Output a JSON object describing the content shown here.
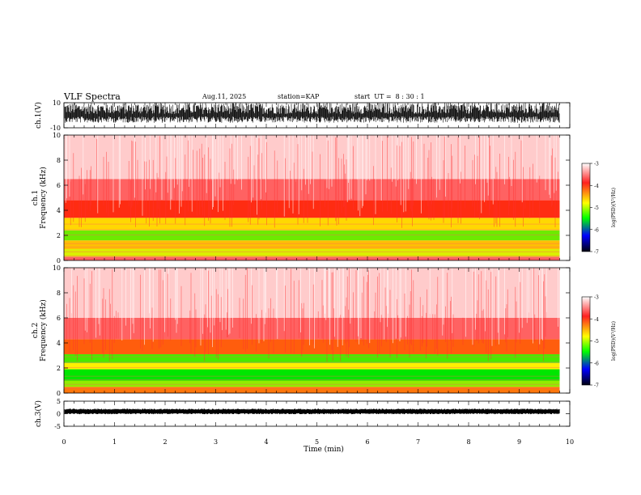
{
  "header": {
    "title": "VLF Spectra",
    "date": "Aug.11, 2025",
    "station": "station=KAP",
    "start": "start  UT =  8 : 30 : 1"
  },
  "chart_data": [
    {
      "type": "line",
      "panel": "ch1-waveform",
      "ylabel": "ch.1(V)",
      "ylim": [
        -10,
        10
      ],
      "yticks": [
        "10",
        "-10"
      ],
      "xlim": [
        0,
        10
      ],
      "color": "#000000",
      "note_values": "dense oscillating trace spanning roughly -5 to 10 V across 0 to 9.8 min"
    },
    {
      "type": "heatmap",
      "panel": "ch1-spectrogram",
      "ylabel": "ch.1\nFrequency (kHz)",
      "ylim": [
        0,
        10
      ],
      "yticks": [
        "0",
        "2",
        "4",
        "6",
        "8",
        "10"
      ],
      "xlim": [
        0,
        10
      ],
      "data_end_min": 9.8,
      "bands": [
        {
          "f0": 0.0,
          "f1": 0.3,
          "level": -3.6
        },
        {
          "f0": 0.3,
          "f1": 0.9,
          "level": -4.9
        },
        {
          "f0": 0.9,
          "f1": 1.6,
          "level": -4.6
        },
        {
          "f0": 1.6,
          "f1": 2.4,
          "level": -5.2
        },
        {
          "f0": 2.4,
          "f1": 3.4,
          "level": -4.7
        },
        {
          "f0": 3.4,
          "f1": 4.8,
          "level": -4.0
        },
        {
          "f0": 4.8,
          "f1": 6.5,
          "level": -3.6
        },
        {
          "f0": 6.5,
          "f1": 10.0,
          "level": -3.2
        }
      ]
    },
    {
      "type": "heatmap",
      "panel": "ch2-spectrogram",
      "ylabel": "ch.2\nFrequency (kHz)",
      "ylim": [
        0,
        10
      ],
      "yticks": [
        "0",
        "2",
        "4",
        "6",
        "8",
        "10"
      ],
      "xlim": [
        0,
        10
      ],
      "data_end_min": 9.8,
      "bands": [
        {
          "f0": 0.0,
          "f1": 0.5,
          "level": -4.3
        },
        {
          "f0": 0.5,
          "f1": 1.0,
          "level": -5.1
        },
        {
          "f0": 1.0,
          "f1": 1.9,
          "level": -5.5
        },
        {
          "f0": 1.9,
          "f1": 2.4,
          "level": -4.8
        },
        {
          "f0": 2.4,
          "f1": 3.1,
          "level": -5.3
        },
        {
          "f0": 3.1,
          "f1": 4.3,
          "level": -4.2
        },
        {
          "f0": 4.3,
          "f1": 6.0,
          "level": -3.6
        },
        {
          "f0": 6.0,
          "f1": 10.0,
          "level": -3.2
        }
      ]
    },
    {
      "type": "line",
      "panel": "ch3-waveform",
      "ylabel": "ch.3(V)",
      "ylim": [
        -5,
        5
      ],
      "yticks": [
        "5",
        "0",
        "-5"
      ],
      "xlim": [
        0,
        10
      ],
      "xlabel": "Time (min)",
      "xticks": [
        "0",
        "1",
        "2",
        "3",
        "4",
        "5",
        "6",
        "7",
        "8",
        "9",
        "10"
      ],
      "color": "#000000",
      "note_values": "thin flat band near 1 V across 0 to 9.8 min"
    }
  ],
  "colorbar": {
    "label": "log(PSD)(V²/Hz)",
    "range": [
      -7,
      -3
    ],
    "ticks": [
      "-3",
      "-4",
      "-5",
      "-6",
      "-7"
    ],
    "stops": [
      "#ffffff",
      "#ff0000",
      "#ffff00",
      "#00ff00",
      "#0000ff",
      "#000000"
    ]
  }
}
